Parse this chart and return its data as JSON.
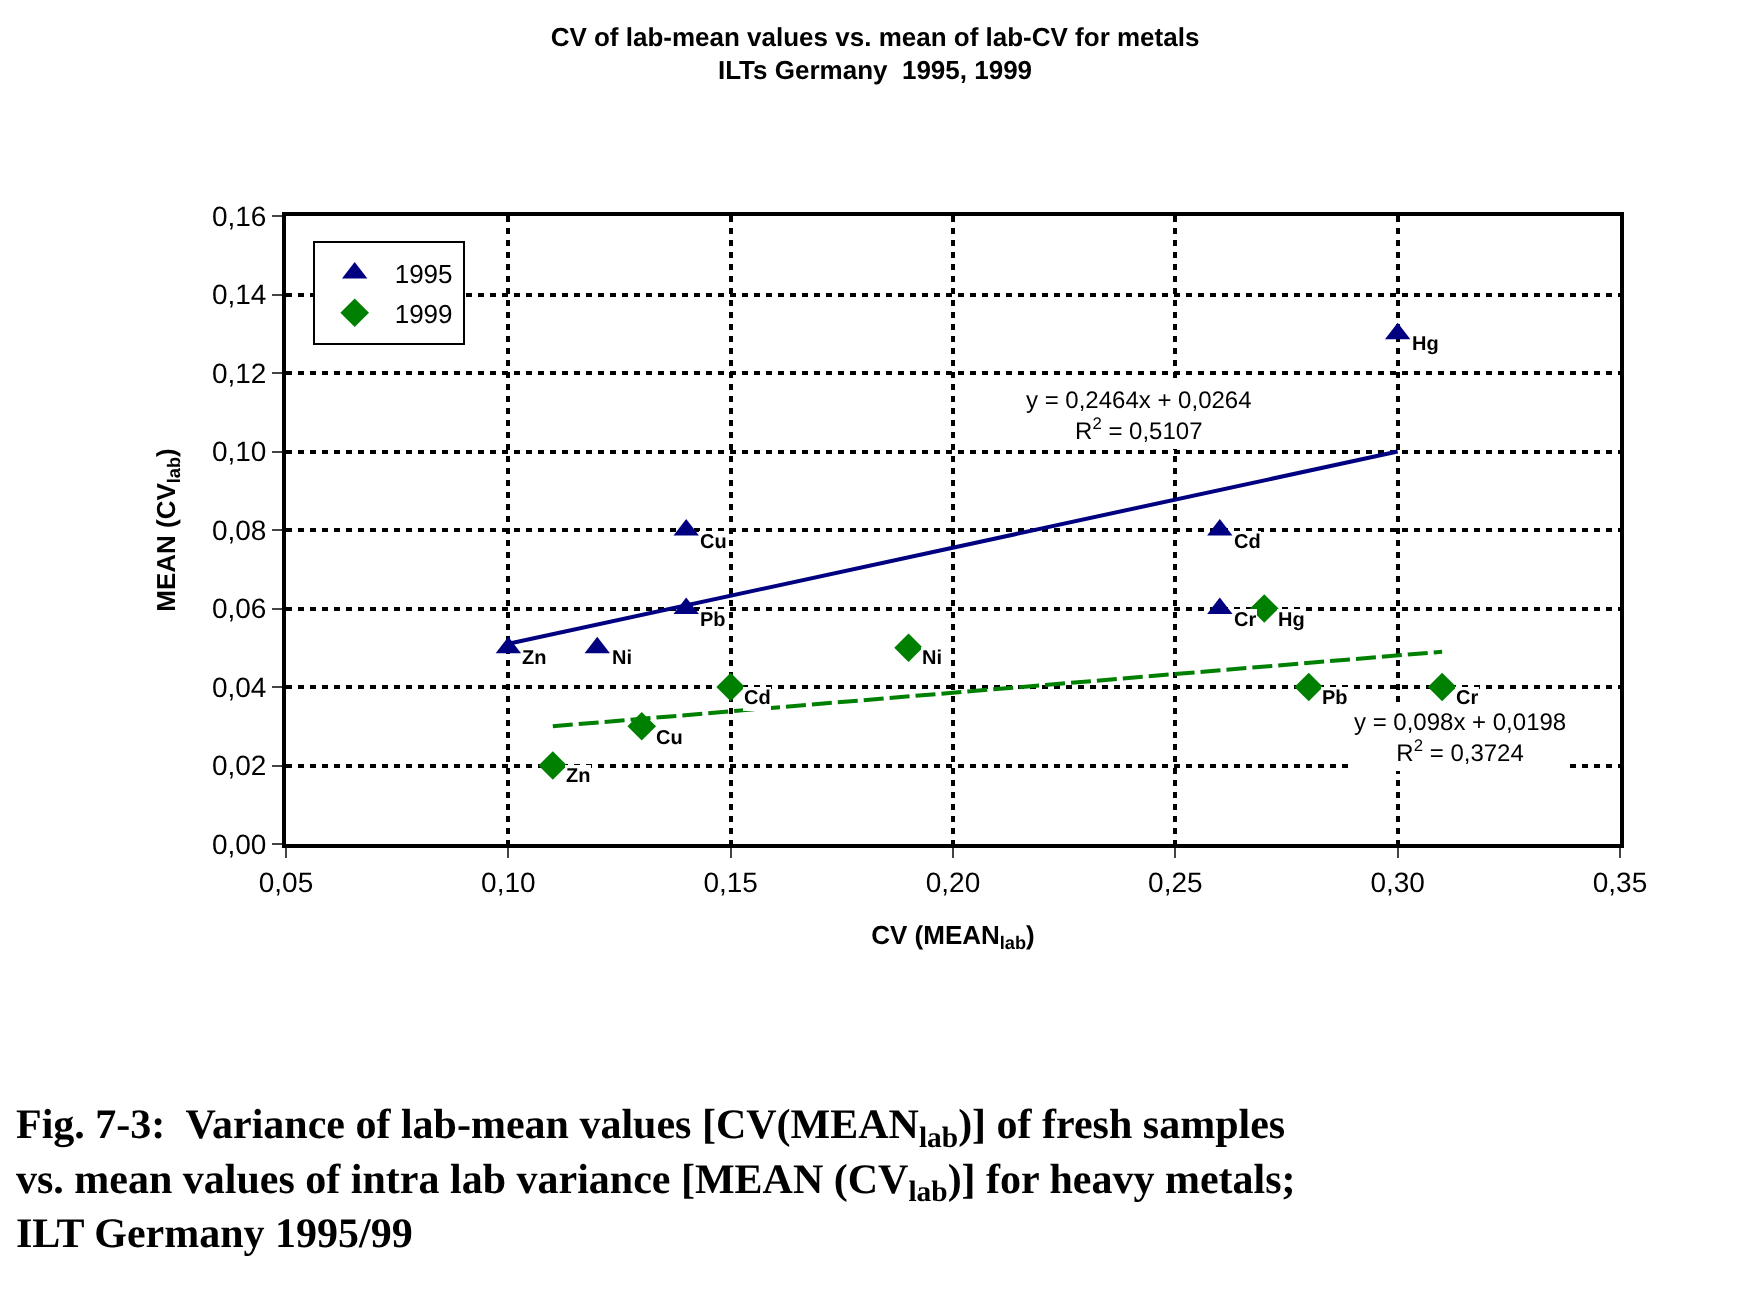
{
  "chart_data": {
    "type": "scatter",
    "title": "CV of lab-mean values vs. mean of lab-CV for metals\nILTs Germany  1995, 1999",
    "xlabel": "CV (MEAN$_{lab}$)",
    "ylabel": "MEAN (CV$_{lab}$)",
    "series": [
      {
        "name": "1995",
        "color": "#000080",
        "marker": "triangle",
        "x": [
          0.1,
          0.12,
          0.14,
          0.14,
          0.26,
          0.26,
          0.3
        ],
        "values": [
          0.05,
          0.05,
          0.08,
          0.06,
          0.08,
          0.06,
          0.13
        ]
      },
      {
        "name": "1999",
        "color": "#008000",
        "marker": "diamond",
        "x": [
          0.11,
          0.13,
          0.15,
          0.19,
          0.27,
          0.28,
          0.31
        ],
        "values": [
          0.02,
          0.03,
          0.04,
          0.05,
          0.06,
          0.04,
          0.04
        ]
      },
      {
        "type": "line",
        "color": "#000080",
        "line_style": "solid",
        "marker": "none",
        "x": [
          0.1,
          0.3
        ],
        "values": [
          0.051,
          0.1
        ]
      },
      {
        "type": "line",
        "color": "#008000",
        "line_style": "dashed",
        "marker": "none",
        "x": [
          0.11,
          0.31
        ],
        "values": [
          0.03,
          0.049
        ]
      }
    ],
    "annotations": [
      {
        "text": "Zn",
        "x": 0.1,
        "y": 0.05
      },
      {
        "text": "Ni",
        "x": 0.12,
        "y": 0.05
      },
      {
        "text": "Cu",
        "x": 0.14,
        "y": 0.08
      },
      {
        "text": "Pb",
        "x": 0.14,
        "y": 0.06
      },
      {
        "text": "Cd",
        "x": 0.26,
        "y": 0.08
      },
      {
        "text": "Cr",
        "x": 0.26,
        "y": 0.06
      },
      {
        "text": "Hg",
        "x": 0.3,
        "y": 0.13
      },
      {
        "text": "Zn",
        "x": 0.11,
        "y": 0.02
      },
      {
        "text": "Cu",
        "x": 0.13,
        "y": 0.03
      },
      {
        "text": "Cd",
        "x": 0.15,
        "y": 0.04
      },
      {
        "text": "Ni",
        "x": 0.19,
        "y": 0.05
      },
      {
        "text": "Hg",
        "x": 0.27,
        "y": 0.06
      },
      {
        "text": "Pb",
        "x": 0.28,
        "y": 0.04
      },
      {
        "text": "Cr",
        "x": 0.31,
        "y": 0.04
      },
      "y = 0,2464x + 0,0264\nR$^{2}$ = 0,5107",
      "y = 0,098x + 0,0198\nR$^{2}$ = 0,3724",
      "Fig. 7-3:  Variance of lab-mean values [CV(MEAN$_{lab}$)] of fresh samples\nvs. mean values of intra lab variance [MEAN (CV$_{lab}$)] for heavy metals;\nILT Germany 1995/99"
    ],
    "xlim": [
      0.05,
      0.35
    ],
    "xticks": [
      {
        "value": 0.05,
        "label": "0,05"
      },
      {
        "value": 0.1,
        "label": "0,10"
      },
      {
        "value": 0.15,
        "label": "0,15"
      },
      {
        "value": 0.2,
        "label": "0,20"
      },
      {
        "value": 0.25,
        "label": "0,25"
      },
      {
        "value": 0.3,
        "label": "0,30"
      },
      {
        "value": 0.35,
        "label": "0,35"
      }
    ],
    "ylim": [
      0,
      0.16
    ],
    "yticks": [
      {
        "value": 0,
        "label": "0,00"
      },
      {
        "value": 0.02,
        "label": "0,02"
      },
      {
        "value": 0.04,
        "label": "0,04"
      },
      {
        "value": 0.06,
        "label": "0,06"
      },
      {
        "value": 0.08,
        "label": "0,08"
      },
      {
        "value": 0.1,
        "label": "0,10"
      },
      {
        "value": 0.12,
        "label": "0,12"
      },
      {
        "value": 0.14,
        "label": "0,14"
      },
      {
        "value": 0.16,
        "label": "0,16"
      }
    ],
    "grid": true,
    "legend": "top left"
  }
}
